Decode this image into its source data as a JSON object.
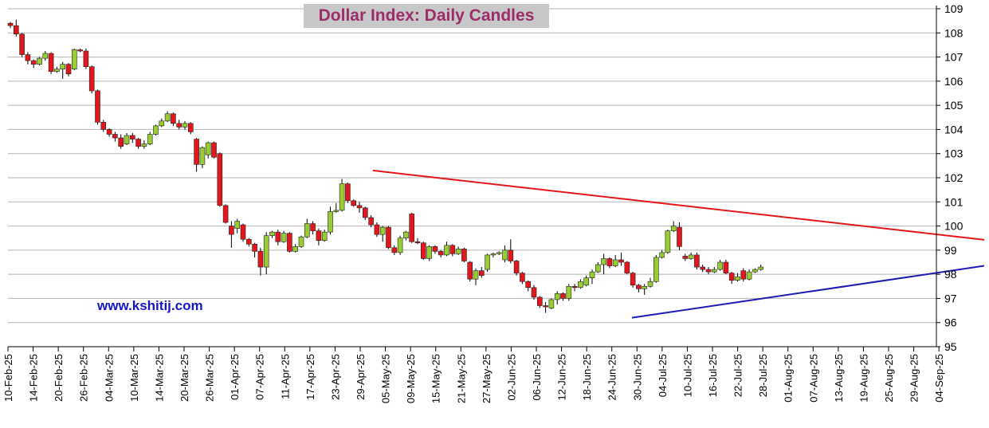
{
  "chart_data": {
    "type": "candlestick",
    "title": "Dollar Index: Daily Candles",
    "watermark": "www.kshitij.com",
    "y_axis": {
      "min": 95,
      "max": 109,
      "ticks": [
        95,
        96,
        97,
        98,
        99,
        100,
        101,
        102,
        103,
        104,
        105,
        106,
        107,
        108,
        109
      ],
      "position": "right"
    },
    "x_ticks": [
      "10-Feb-25",
      "14-Feb-25",
      "20-Feb-25",
      "26-Feb-25",
      "04-Mar-25",
      "10-Mar-25",
      "14-Mar-25",
      "20-Mar-25",
      "26-Mar-25",
      "01-Apr-25",
      "07-Apr-25",
      "11-Apr-25",
      "17-Apr-25",
      "23-Apr-25",
      "29-Apr-25",
      "05-May-25",
      "09-May-25",
      "15-May-25",
      "21-May-25",
      "27-May-25",
      "02-Jun-25",
      "06-Jun-25",
      "12-Jun-25",
      "18-Jun-25",
      "24-Jun-25",
      "30-Jun-25",
      "04-Jul-25",
      "10-Jul-25",
      "16-Jul-25",
      "22-Jul-25",
      "28-Jul-25",
      "01-Aug-25",
      "07-Aug-25",
      "13-Aug-25",
      "19-Aug-25",
      "25-Aug-25",
      "29-Aug-25",
      "04-Sep-25"
    ],
    "colors": {
      "up": "#99cc33",
      "down": "#e3161b",
      "resistance": "#e3161b",
      "support": "#1c1cb4",
      "grid": "#b4b4b4",
      "title_bg": "#c8c8c8",
      "title_text": "#9b2d6a",
      "watermark": "#1515c8"
    },
    "trendlines": [
      {
        "name": "resistance",
        "start": {
          "x_index": 14.5,
          "y": 102.3
        },
        "end": {
          "x_index": 38.0,
          "y": 99.43
        }
      },
      {
        "name": "support",
        "start": {
          "x_index": 24.8,
          "y": 96.2
        },
        "end": {
          "x_index": 38.0,
          "y": 98.35
        }
      }
    ],
    "candles": [
      {
        "o": 108.4,
        "h": 108.45,
        "l": 108.2,
        "c": 108.3
      },
      {
        "o": 108.3,
        "h": 108.55,
        "l": 107.85,
        "c": 107.95
      },
      {
        "o": 107.95,
        "h": 108.0,
        "l": 107.0,
        "c": 107.1
      },
      {
        "o": 107.1,
        "h": 107.2,
        "l": 106.7,
        "c": 106.85
      },
      {
        "o": 106.85,
        "h": 106.9,
        "l": 106.55,
        "c": 106.7
      },
      {
        "o": 106.7,
        "h": 107.0,
        "l": 106.65,
        "c": 106.95
      },
      {
        "o": 106.95,
        "h": 107.25,
        "l": 106.85,
        "c": 107.15
      },
      {
        "o": 107.15,
        "h": 107.2,
        "l": 106.3,
        "c": 106.4
      },
      {
        "o": 106.4,
        "h": 106.6,
        "l": 106.35,
        "c": 106.5
      },
      {
        "o": 106.5,
        "h": 106.8,
        "l": 106.1,
        "c": 106.7
      },
      {
        "o": 106.7,
        "h": 106.75,
        "l": 106.2,
        "c": 106.3
      },
      {
        "o": 106.5,
        "h": 107.35,
        "l": 106.45,
        "c": 107.3
      },
      {
        "o": 107.3,
        "h": 107.35,
        "l": 107.2,
        "c": 107.25
      },
      {
        "o": 107.25,
        "h": 107.35,
        "l": 106.5,
        "c": 106.6
      },
      {
        "o": 106.6,
        "h": 106.65,
        "l": 105.5,
        "c": 105.6
      },
      {
        "o": 105.6,
        "h": 105.65,
        "l": 104.2,
        "c": 104.3
      },
      {
        "o": 104.3,
        "h": 104.4,
        "l": 103.9,
        "c": 104.0
      },
      {
        "o": 104.0,
        "h": 104.05,
        "l": 103.7,
        "c": 103.8
      },
      {
        "o": 103.8,
        "h": 103.9,
        "l": 103.5,
        "c": 103.65
      },
      {
        "o": 103.65,
        "h": 103.8,
        "l": 103.2,
        "c": 103.3
      },
      {
        "o": 103.4,
        "h": 103.85,
        "l": 103.35,
        "c": 103.75
      },
      {
        "o": 103.75,
        "h": 103.85,
        "l": 103.45,
        "c": 103.6
      },
      {
        "o": 103.6,
        "h": 103.65,
        "l": 103.2,
        "c": 103.3
      },
      {
        "o": 103.3,
        "h": 103.55,
        "l": 103.2,
        "c": 103.4
      },
      {
        "o": 103.4,
        "h": 103.9,
        "l": 103.35,
        "c": 103.8
      },
      {
        "o": 103.8,
        "h": 104.2,
        "l": 103.75,
        "c": 104.15
      },
      {
        "o": 104.15,
        "h": 104.45,
        "l": 104.1,
        "c": 104.35
      },
      {
        "o": 104.35,
        "h": 104.75,
        "l": 104.3,
        "c": 104.65
      },
      {
        "o": 104.65,
        "h": 104.7,
        "l": 104.15,
        "c": 104.25
      },
      {
        "o": 104.25,
        "h": 104.4,
        "l": 104.0,
        "c": 104.1
      },
      {
        "o": 104.1,
        "h": 104.35,
        "l": 104.0,
        "c": 104.25
      },
      {
        "o": 104.25,
        "h": 104.3,
        "l": 103.8,
        "c": 103.9
      },
      {
        "o": 103.6,
        "h": 103.65,
        "l": 102.25,
        "c": 102.55
      },
      {
        "o": 102.55,
        "h": 103.3,
        "l": 102.4,
        "c": 103.25
      },
      {
        "o": 102.95,
        "h": 103.5,
        "l": 102.8,
        "c": 103.45
      },
      {
        "o": 103.45,
        "h": 103.5,
        "l": 102.8,
        "c": 102.85
      },
      {
        "o": 103.0,
        "h": 103.05,
        "l": 100.8,
        "c": 100.85
      },
      {
        "o": 100.85,
        "h": 100.9,
        "l": 100.1,
        "c": 100.15
      },
      {
        "o": 100.0,
        "h": 100.2,
        "l": 99.1,
        "c": 99.65
      },
      {
        "o": 99.9,
        "h": 100.3,
        "l": 99.7,
        "c": 100.2
      },
      {
        "o": 100.05,
        "h": 100.1,
        "l": 99.35,
        "c": 99.45
      },
      {
        "o": 99.45,
        "h": 99.5,
        "l": 99.15,
        "c": 99.25
      },
      {
        "o": 99.25,
        "h": 99.3,
        "l": 98.7,
        "c": 98.95
      },
      {
        "o": 98.95,
        "h": 99.1,
        "l": 97.95,
        "c": 98.3
      },
      {
        "o": 98.3,
        "h": 99.75,
        "l": 98.0,
        "c": 99.6
      },
      {
        "o": 99.6,
        "h": 99.8,
        "l": 99.5,
        "c": 99.75
      },
      {
        "o": 99.75,
        "h": 99.85,
        "l": 99.2,
        "c": 99.35
      },
      {
        "o": 99.35,
        "h": 99.8,
        "l": 99.3,
        "c": 99.7
      },
      {
        "o": 99.7,
        "h": 99.75,
        "l": 98.9,
        "c": 98.95
      },
      {
        "o": 98.95,
        "h": 99.25,
        "l": 98.9,
        "c": 99.15
      },
      {
        "o": 99.15,
        "h": 99.6,
        "l": 99.1,
        "c": 99.55
      },
      {
        "o": 99.55,
        "h": 100.3,
        "l": 99.5,
        "c": 100.1
      },
      {
        "o": 100.1,
        "h": 100.2,
        "l": 99.65,
        "c": 99.8
      },
      {
        "o": 99.8,
        "h": 99.9,
        "l": 99.2,
        "c": 99.4
      },
      {
        "o": 99.4,
        "h": 99.85,
        "l": 99.35,
        "c": 99.75
      },
      {
        "o": 99.75,
        "h": 100.8,
        "l": 99.65,
        "c": 100.6
      },
      {
        "o": 100.6,
        "h": 100.95,
        "l": 100.55,
        "c": 100.65
      },
      {
        "o": 100.65,
        "h": 101.95,
        "l": 100.6,
        "c": 101.75
      },
      {
        "o": 101.75,
        "h": 101.8,
        "l": 100.95,
        "c": 101.05
      },
      {
        "o": 101.05,
        "h": 101.1,
        "l": 100.8,
        "c": 100.85
      },
      {
        "o": 100.85,
        "h": 101.0,
        "l": 100.55,
        "c": 100.75
      },
      {
        "o": 100.75,
        "h": 100.8,
        "l": 100.25,
        "c": 100.35
      },
      {
        "o": 100.35,
        "h": 100.45,
        "l": 99.95,
        "c": 100.05
      },
      {
        "o": 100.05,
        "h": 100.15,
        "l": 99.55,
        "c": 99.65
      },
      {
        "o": 99.65,
        "h": 100.0,
        "l": 99.35,
        "c": 99.95
      },
      {
        "o": 99.95,
        "h": 100.0,
        "l": 99.05,
        "c": 99.1
      },
      {
        "o": 99.1,
        "h": 99.2,
        "l": 98.8,
        "c": 98.9
      },
      {
        "o": 98.9,
        "h": 99.6,
        "l": 98.8,
        "c": 99.5
      },
      {
        "o": 99.5,
        "h": 99.8,
        "l": 99.4,
        "c": 99.75
      },
      {
        "o": 100.5,
        "h": 100.55,
        "l": 99.3,
        "c": 99.35
      },
      {
        "o": 99.35,
        "h": 99.5,
        "l": 99.25,
        "c": 99.3
      },
      {
        "o": 99.3,
        "h": 99.35,
        "l": 98.6,
        "c": 98.65
      },
      {
        "o": 98.65,
        "h": 99.2,
        "l": 98.55,
        "c": 99.15
      },
      {
        "o": 99.15,
        "h": 99.2,
        "l": 98.85,
        "c": 98.95
      },
      {
        "o": 98.95,
        "h": 99.0,
        "l": 98.7,
        "c": 98.8
      },
      {
        "o": 98.8,
        "h": 99.35,
        "l": 98.75,
        "c": 99.2
      },
      {
        "o": 99.2,
        "h": 99.25,
        "l": 98.75,
        "c": 98.85
      },
      {
        "o": 98.85,
        "h": 99.15,
        "l": 98.8,
        "c": 99.05
      },
      {
        "o": 99.05,
        "h": 99.1,
        "l": 98.5,
        "c": 98.55
      },
      {
        "o": 98.5,
        "h": 98.55,
        "l": 97.7,
        "c": 97.8
      },
      {
        "o": 97.8,
        "h": 98.25,
        "l": 97.55,
        "c": 98.15
      },
      {
        "o": 98.15,
        "h": 98.3,
        "l": 97.85,
        "c": 97.95
      },
      {
        "o": 98.2,
        "h": 98.85,
        "l": 98.1,
        "c": 98.8
      },
      {
        "o": 98.8,
        "h": 98.9,
        "l": 98.7,
        "c": 98.85
      },
      {
        "o": 98.85,
        "h": 98.95,
        "l": 98.8,
        "c": 98.9
      },
      {
        "o": 98.6,
        "h": 99.2,
        "l": 98.5,
        "c": 99.0
      },
      {
        "o": 99.0,
        "h": 99.45,
        "l": 98.45,
        "c": 98.55
      },
      {
        "o": 98.55,
        "h": 98.6,
        "l": 97.95,
        "c": 98.05
      },
      {
        "o": 98.05,
        "h": 98.1,
        "l": 97.6,
        "c": 97.7
      },
      {
        "o": 97.7,
        "h": 97.75,
        "l": 97.3,
        "c": 97.45
      },
      {
        "o": 97.45,
        "h": 97.55,
        "l": 96.95,
        "c": 97.05
      },
      {
        "o": 97.05,
        "h": 97.1,
        "l": 96.6,
        "c": 96.7
      },
      {
        "o": 96.7,
        "h": 96.85,
        "l": 96.4,
        "c": 96.65
      },
      {
        "o": 96.6,
        "h": 97.0,
        "l": 96.55,
        "c": 96.95
      },
      {
        "o": 96.95,
        "h": 97.3,
        "l": 96.75,
        "c": 97.2
      },
      {
        "o": 97.2,
        "h": 97.25,
        "l": 96.9,
        "c": 97.0
      },
      {
        "o": 97.0,
        "h": 97.6,
        "l": 96.9,
        "c": 97.5
      },
      {
        "o": 97.5,
        "h": 97.6,
        "l": 97.3,
        "c": 97.45
      },
      {
        "o": 97.45,
        "h": 97.8,
        "l": 97.4,
        "c": 97.7
      },
      {
        "o": 97.55,
        "h": 97.95,
        "l": 97.5,
        "c": 97.85
      },
      {
        "o": 97.85,
        "h": 98.2,
        "l": 97.6,
        "c": 98.1
      },
      {
        "o": 98.1,
        "h": 98.5,
        "l": 98.05,
        "c": 98.4
      },
      {
        "o": 98.4,
        "h": 98.85,
        "l": 98.0,
        "c": 98.65
      },
      {
        "o": 98.65,
        "h": 98.7,
        "l": 98.25,
        "c": 98.35
      },
      {
        "o": 98.35,
        "h": 98.8,
        "l": 98.3,
        "c": 98.6
      },
      {
        "o": 98.6,
        "h": 98.9,
        "l": 98.35,
        "c": 98.5
      },
      {
        "o": 98.5,
        "h": 98.55,
        "l": 98.0,
        "c": 98.05
      },
      {
        "o": 98.05,
        "h": 98.1,
        "l": 97.45,
        "c": 97.55
      },
      {
        "o": 97.55,
        "h": 97.6,
        "l": 97.25,
        "c": 97.4
      },
      {
        "o": 97.4,
        "h": 97.6,
        "l": 97.15,
        "c": 97.5
      },
      {
        "o": 97.5,
        "h": 97.85,
        "l": 97.45,
        "c": 97.7
      },
      {
        "o": 97.7,
        "h": 98.8,
        "l": 97.65,
        "c": 98.7
      },
      {
        "o": 98.7,
        "h": 99.0,
        "l": 98.65,
        "c": 98.9
      },
      {
        "o": 98.9,
        "h": 99.85,
        "l": 98.85,
        "c": 99.8
      },
      {
        "o": 99.8,
        "h": 100.2,
        "l": 99.75,
        "c": 100.0
      },
      {
        "o": 99.95,
        "h": 100.15,
        "l": 99.0,
        "c": 99.15
      },
      {
        "o": 98.75,
        "h": 98.85,
        "l": 98.55,
        "c": 98.65
      },
      {
        "o": 98.65,
        "h": 98.9,
        "l": 98.6,
        "c": 98.8
      },
      {
        "o": 98.8,
        "h": 98.9,
        "l": 98.2,
        "c": 98.3
      },
      {
        "o": 98.3,
        "h": 98.4,
        "l": 98.1,
        "c": 98.2
      },
      {
        "o": 98.2,
        "h": 98.3,
        "l": 98.0,
        "c": 98.1
      },
      {
        "o": 98.1,
        "h": 98.3,
        "l": 98.05,
        "c": 98.2
      },
      {
        "o": 98.2,
        "h": 98.6,
        "l": 98.15,
        "c": 98.5
      },
      {
        "o": 98.5,
        "h": 98.6,
        "l": 98.0,
        "c": 98.05
      },
      {
        "o": 98.05,
        "h": 98.1,
        "l": 97.6,
        "c": 97.75
      },
      {
        "o": 97.75,
        "h": 98.05,
        "l": 97.7,
        "c": 97.9
      },
      {
        "o": 98.15,
        "h": 98.25,
        "l": 97.7,
        "c": 97.8
      },
      {
        "o": 97.8,
        "h": 98.2,
        "l": 97.75,
        "c": 98.1
      },
      {
        "o": 98.1,
        "h": 98.25,
        "l": 98.05,
        "c": 98.2
      },
      {
        "o": 98.2,
        "h": 98.4,
        "l": 98.15,
        "c": 98.3
      }
    ]
  }
}
